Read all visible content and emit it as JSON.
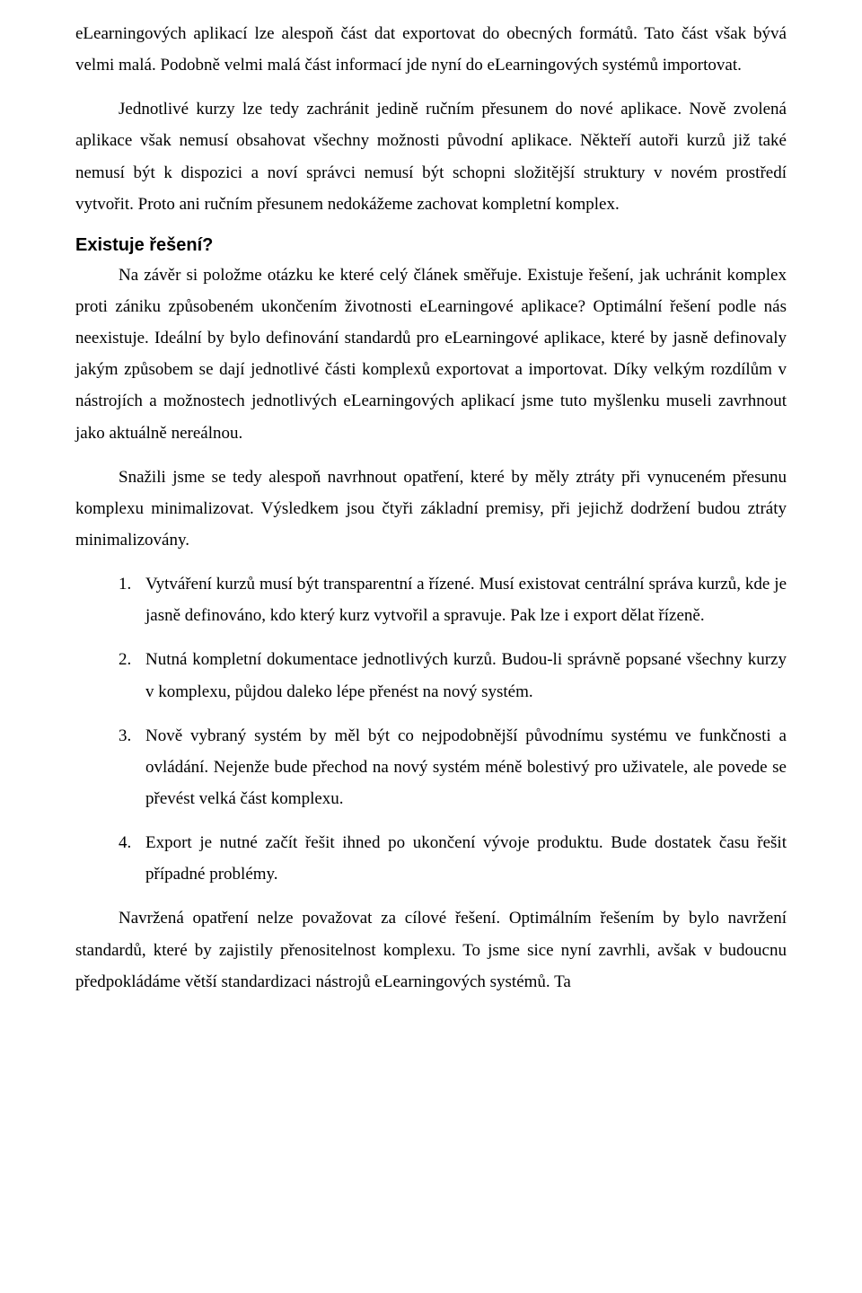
{
  "para1": "eLearningových aplikací lze alespoň část dat exportovat do obecných formátů. Tato část však bývá velmi malá. Podobně velmi malá část informací jde nyní do eLearningových systémů importovat.",
  "para2": "Jednotlivé kurzy lze tedy zachránit jedině ručním přesunem do  nové aplikace. Nově zvolená aplikace však nemusí obsahovat všechny možnosti původní aplikace. Někteří autoři kurzů již také nemusí být k dispozici a noví správci nemusí být schopni složitější struktury v novém prostředí vytvořit. Proto ani ručním přesunem nedokážeme zachovat kompletní komplex.",
  "heading": "Existuje řešení?",
  "para3": "Na závěr si položme otázku ke které celý článek směřuje. Existuje řešení, jak uchránit komplex proti zániku způsobeném ukončením životnosti eLearningové aplikace?  Optimální řešení podle nás neexistuje. Ideální by bylo definování standardů pro eLearningové aplikace, které by jasně definovaly jakým způsobem se dají jednotlivé části komplexů exportovat a importovat. Díky velkým rozdílům v nástrojích a možnostech jednotlivých eLearningových aplikací jsme tuto myšlenku museli zavrhnout jako aktuálně nereálnou.",
  "para4": "Snažili jsme se tedy alespoň navrhnout opatření, které by měly ztráty při vynuceném přesunu komplexu minimalizovat. Výsledkem jsou čtyři základní premisy, při jejichž dodržení budou ztráty minimalizovány.",
  "list": [
    {
      "num": "1.",
      "text": "Vytváření kurzů musí být transparentní a řízené. Musí existovat centrální správa kurzů, kde je jasně definováno, kdo který kurz vytvořil a spravuje. Pak lze i export dělat řízeně."
    },
    {
      "num": "2.",
      "text": "Nutná kompletní dokumentace jednotlivých kurzů. Budou-li správně popsané všechny kurzy v komplexu, půjdou daleko lépe přenést na nový systém."
    },
    {
      "num": "3.",
      "text": "Nově vybraný systém by měl být co nejpodobnější původnímu systému ve funkčnosti a ovládání. Nejenže bude přechod na nový systém méně bolestivý pro uživatele, ale povede se převést velká část komplexu."
    },
    {
      "num": "4.",
      "text": "Export je nutné začít řešit ihned po ukončení vývoje produktu. Bude dostatek času řešit případné problémy."
    }
  ],
  "para5": "Navržená opatření nelze považovat za cílové řešení. Optimálním řešením by bylo navržení standardů, které by zajistily přenositelnost komplexu. To jsme sice nyní zavrhli, avšak v budoucnu předpokládáme větší standardizaci nástrojů  eLearningových systémů. Ta"
}
